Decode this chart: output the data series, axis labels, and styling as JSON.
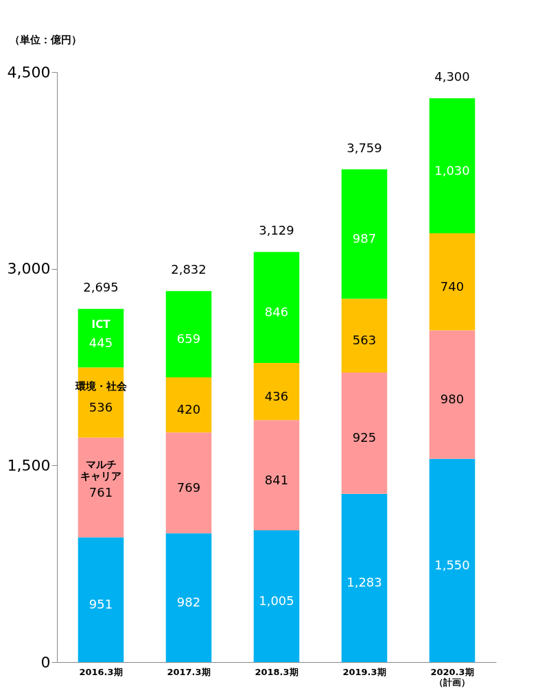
{
  "chart_data": {
    "type": "bar",
    "stacked": true,
    "ylabel": "（単位：億円）",
    "categories": [
      "2016.3期",
      "2017.3期",
      "2018.3期",
      "2019.3期",
      "2020.3期（計画）"
    ],
    "series": [
      {
        "color": "#00b0f0",
        "values": [
          951,
          982,
          1005,
          1283,
          1550
        ],
        "value_labels": [
          "951",
          "982",
          "1,005",
          "1,283",
          "1,550"
        ]
      },
      {
        "name": "マルチキャリア",
        "color": "#ff9999",
        "values": [
          761,
          769,
          841,
          925,
          980
        ],
        "value_labels": [
          "761",
          "769",
          "841",
          "925",
          "980"
        ]
      },
      {
        "name": "環境・社会",
        "color": "#ffc000",
        "values": [
          536,
          420,
          436,
          563,
          740
        ],
        "value_labels": [
          "536",
          "420",
          "436",
          "563",
          "740"
        ]
      },
      {
        "name": "ICT",
        "color": "#00ff00",
        "values": [
          445,
          659,
          846,
          987,
          1030
        ],
        "value_labels": [
          "445",
          "659",
          "846",
          "987",
          "1,030"
        ]
      }
    ],
    "totals": [
      "2,695",
      "2,832",
      "3,129",
      "3,759",
      "4,300"
    ],
    "ylim": [
      0,
      4500
    ],
    "yticks": [
      0,
      {
        "value": 1500,
        "label": "1,500"
      },
      {
        "value": 3000,
        "label": "3,000"
      },
      {
        "value": 4500,
        "label": "4,500"
      }
    ],
    "grid": false
  }
}
